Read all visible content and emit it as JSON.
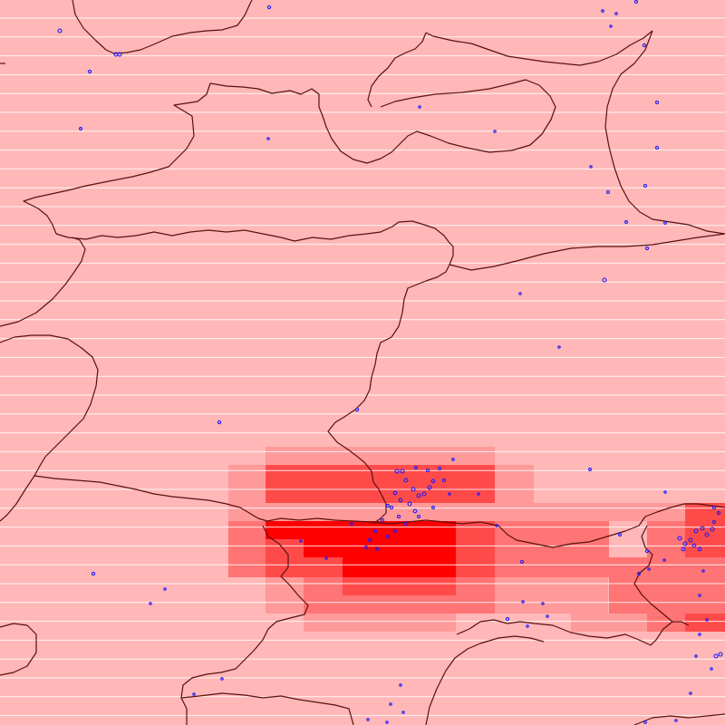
{
  "map": {
    "colors": {
      "background": "#ffb7b7",
      "heat_low": "#ff9a9a",
      "heat_mid": "#ff7474",
      "heat_high": "#ff4a4a",
      "heat_max": "#ff0000",
      "coastline": "#5c1010",
      "row_lines": "#ffffff",
      "events": "#1a1aff"
    },
    "layers": [
      "density-grid",
      "coastlines",
      "event-markers"
    ],
    "heat_levels": [
      "low",
      "mid",
      "high",
      "max"
    ]
  }
}
